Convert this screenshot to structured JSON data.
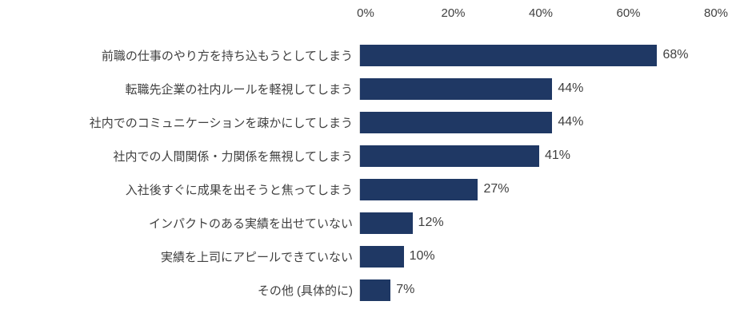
{
  "chart_data": {
    "type": "bar",
    "orientation": "horizontal",
    "title": "",
    "xlabel": "",
    "ylabel": "",
    "xlim": [
      0,
      80
    ],
    "axis_ticks": [
      "0%",
      "20%",
      "40%",
      "60%",
      "80%"
    ],
    "axis_tick_values": [
      0,
      20,
      40,
      60,
      80
    ],
    "grid": false,
    "legend_position": "none",
    "bar_color": "#1f3864",
    "categories": [
      "前職の仕事のやり方を持ち込もうとしてしまう",
      "転職先企業の社内ルールを軽視してしまう",
      "社内でのコミュニケーションを疎かにしてしまう",
      "社内での人間関係・力関係を無視してしまう",
      "入社後すぐに成果を出そうと焦ってしまう",
      "インパクトのある実績を出せていない",
      "実績を上司にアピールできていない",
      "その他 (具体的に)"
    ],
    "values": [
      68,
      44,
      44,
      41,
      27,
      12,
      10,
      7
    ],
    "value_labels": [
      "68%",
      "44%",
      "44%",
      "41%",
      "27%",
      "12%",
      "10%",
      "7%"
    ]
  }
}
